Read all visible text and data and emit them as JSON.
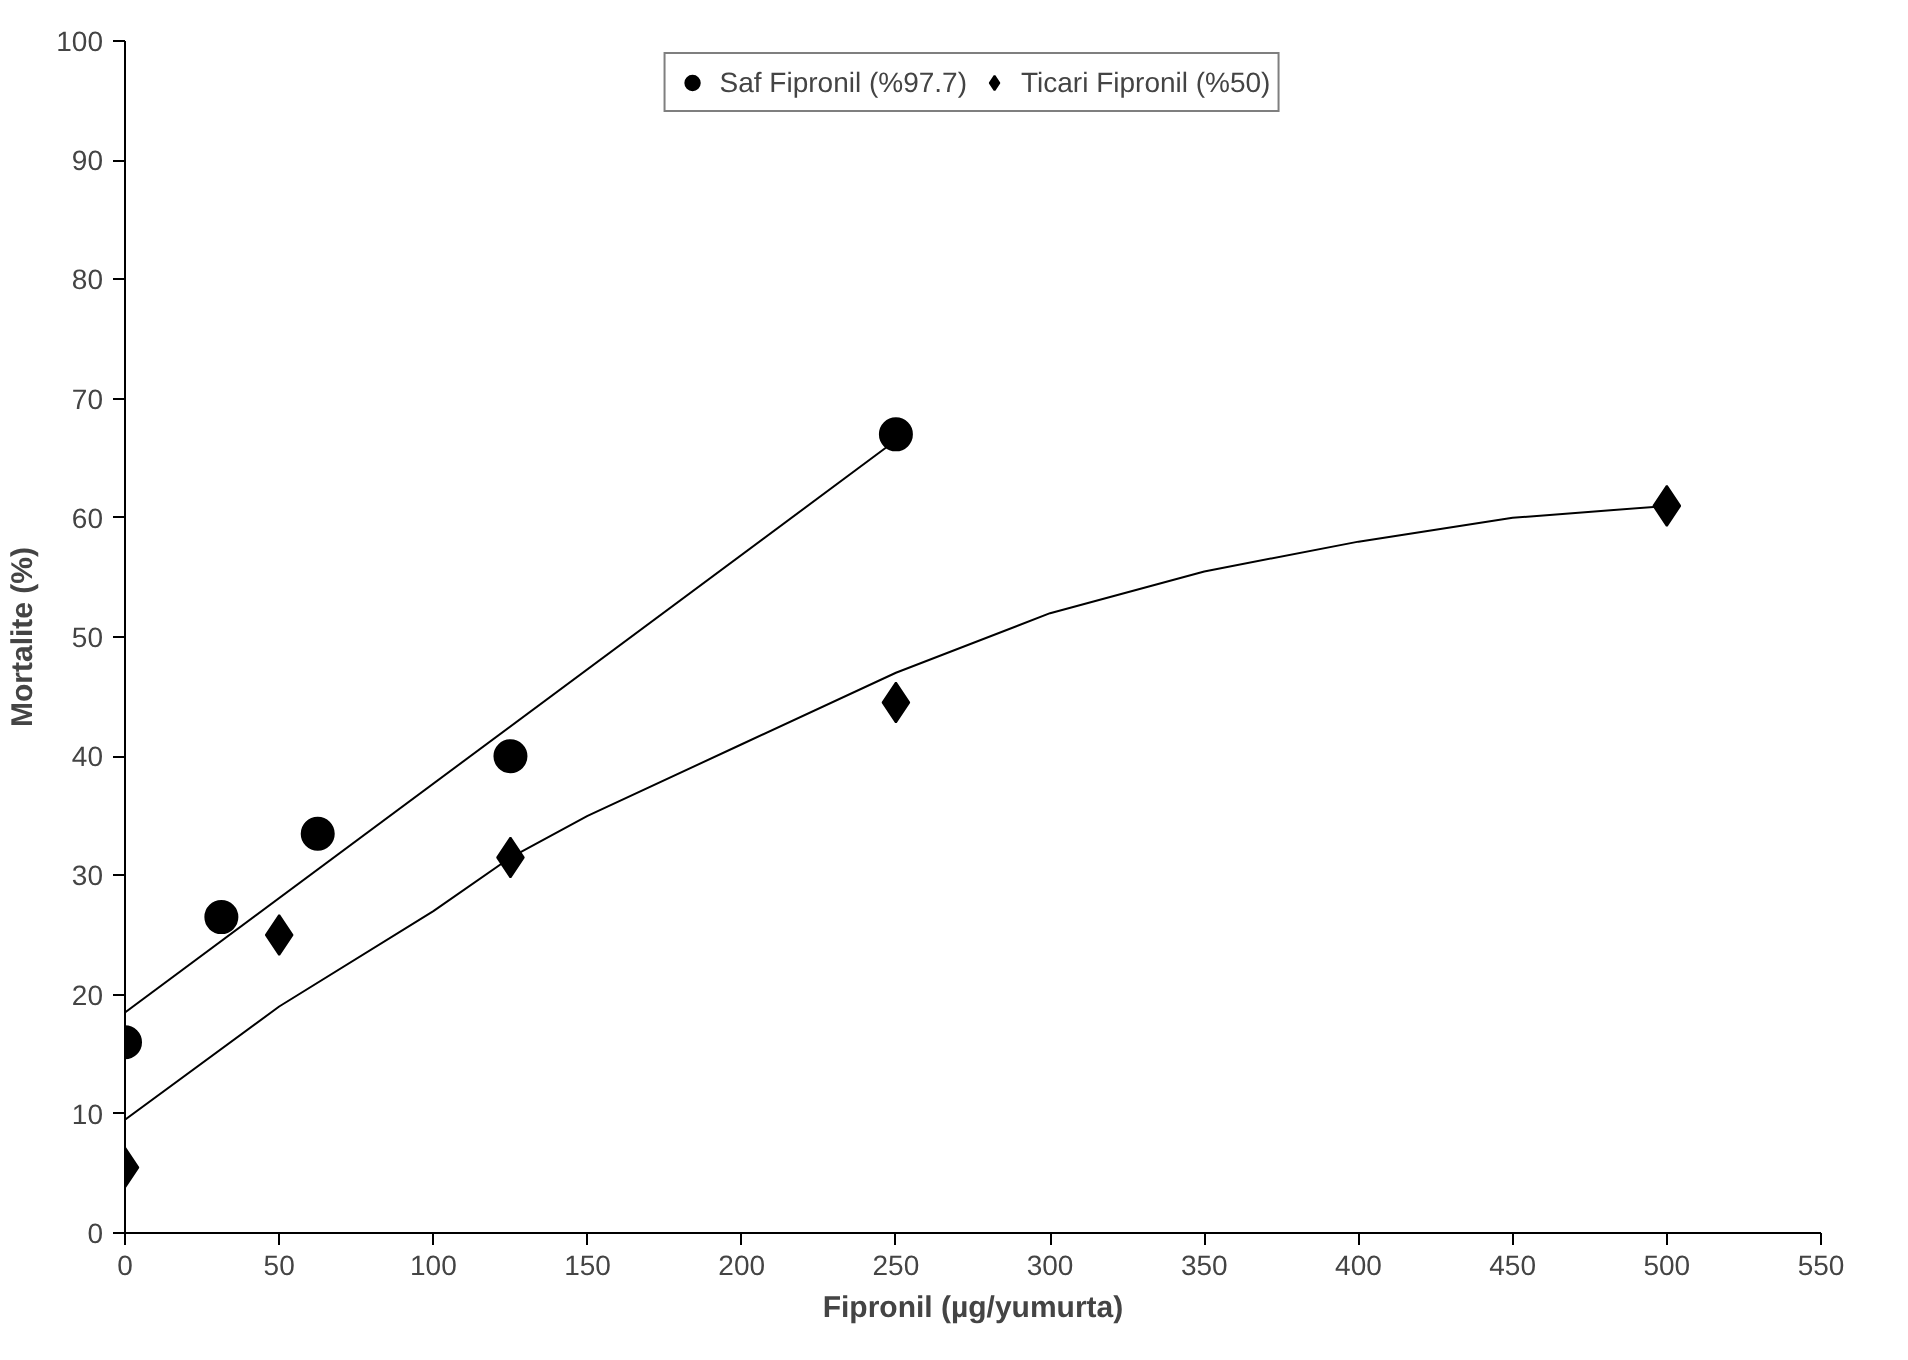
{
  "chart_data": {
    "type": "scatter",
    "xlabel": "Fipronil (µg/yumurta)",
    "ylabel": "Mortalite (%)",
    "xlim": [
      0,
      550
    ],
    "xticks": [
      0,
      50,
      100,
      150,
      200,
      250,
      300,
      350,
      400,
      450,
      500,
      550
    ],
    "ylim": [
      0,
      100
    ],
    "yticks": [
      0,
      10,
      20,
      30,
      40,
      50,
      60,
      70,
      80,
      90,
      100
    ],
    "grid": false,
    "legend": "top",
    "series": [
      {
        "name": "Saf Fipronil (%97.7)",
        "color": "#000000",
        "marker": "circle",
        "x": [
          0,
          31.25,
          62.5,
          125,
          250
        ],
        "values": [
          16,
          26.5,
          33.5,
          40,
          67
        ]
      },
      {
        "name": "Ticari Fipronil (%50)",
        "color": "#000000",
        "marker": "diamond",
        "x": [
          0,
          50,
          125,
          250,
          500
        ],
        "values": [
          5.5,
          25,
          31.5,
          44.5,
          61
        ]
      },
      {
        "type": "line",
        "color": "#000000",
        "marker": "none",
        "x": [
          0,
          250
        ],
        "values": [
          18.5,
          66.5
        ]
      },
      {
        "type": "line",
        "color": "#000000",
        "marker": "none",
        "x": [
          0,
          50,
          100,
          125,
          150,
          200,
          250,
          300,
          350,
          400,
          450,
          500
        ],
        "values": [
          9.5,
          19,
          27,
          31.5,
          35,
          41,
          47,
          52,
          55.5,
          58,
          60,
          61
        ]
      }
    ]
  }
}
